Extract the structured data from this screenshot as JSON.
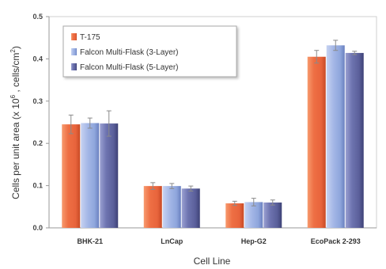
{
  "chart_data": {
    "type": "bar",
    "title": "",
    "xlabel": "Cell Line",
    "ylabel_parts": {
      "prefix": "Cells per unit area (x 10",
      "exp": "6",
      "middle": " , cells/cm",
      "sq": "2",
      "suffix": ")"
    },
    "ylim": [
      0,
      0.5
    ],
    "yticks": [
      "0.0",
      "0.1",
      "0.2",
      "0.3",
      "0.4",
      "0.5"
    ],
    "grid": false,
    "legend_position": "top-left",
    "categories": [
      "BHK-21",
      "LnCap",
      "Hep-G2",
      "EcoPack 2-293"
    ],
    "series": [
      {
        "name": "T-175",
        "color": "#e8643c",
        "values": [
          0.245,
          0.099,
          0.058,
          0.405
        ],
        "errors": [
          0.022,
          0.008,
          0.005,
          0.015
        ]
      },
      {
        "name": "Falcon Multi-Flask (3-Layer)",
        "color": "#8fa6dc",
        "values": [
          0.248,
          0.099,
          0.061,
          0.432
        ],
        "errors": [
          0.012,
          0.006,
          0.009,
          0.012
        ]
      },
      {
        "name": "Falcon Multi-Flask (5-Layer)",
        "color": "#5a5f9a",
        "values": [
          0.247,
          0.093,
          0.06,
          0.414
        ],
        "errors": [
          0.03,
          0.006,
          0.006,
          0.004
        ]
      }
    ]
  }
}
